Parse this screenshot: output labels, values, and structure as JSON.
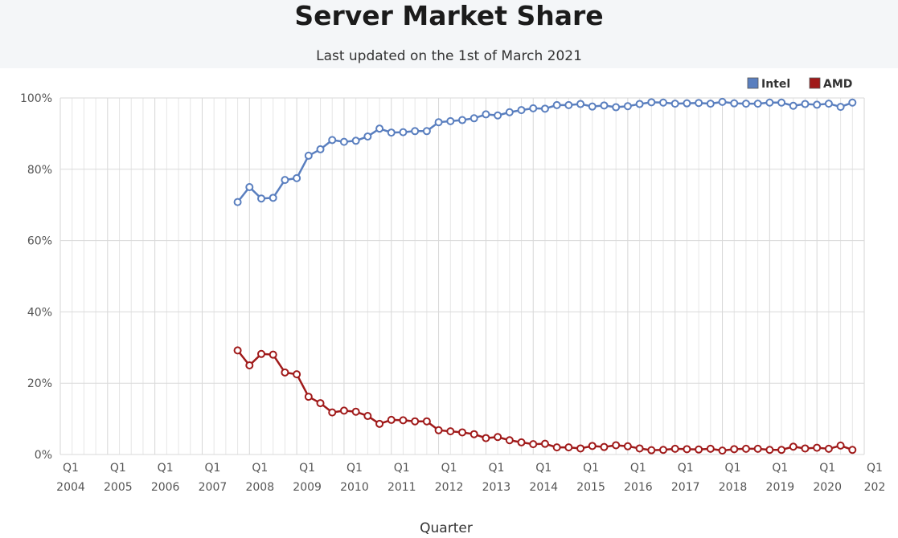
{
  "title": "Server Market Share",
  "subtitle": "Last updated on the 1st of March 2021",
  "chart_data": {
    "type": "line",
    "xlabel": "Quarter",
    "ylabel": "",
    "ylim": [
      0,
      100
    ],
    "yticks": [
      0,
      20,
      40,
      60,
      80,
      100
    ],
    "ytick_labels": [
      "0%",
      "20%",
      "40%",
      "60%",
      "80%",
      "100%"
    ],
    "x_range": [
      "2004 Q1",
      "2021 Q1"
    ],
    "x_tick_top": "Q1",
    "x_tick_years": [
      "2004",
      "2005",
      "2006",
      "2007",
      "2008",
      "2009",
      "2010",
      "2011",
      "2012",
      "2013",
      "2014",
      "2015",
      "2016",
      "2017",
      "2018",
      "2019",
      "2020",
      "202"
    ],
    "grid": true,
    "legend_position": "top-right",
    "quarters": [
      "2007 Q4",
      "2008 Q1",
      "2008 Q2",
      "2008 Q3",
      "2008 Q4",
      "2009 Q1",
      "2009 Q2",
      "2009 Q3",
      "2009 Q4",
      "2010 Q1",
      "2010 Q2",
      "2010 Q3",
      "2010 Q4",
      "2011 Q1",
      "2011 Q2",
      "2011 Q3",
      "2011 Q4",
      "2012 Q1",
      "2012 Q2",
      "2012 Q3",
      "2012 Q4",
      "2013 Q1",
      "2013 Q2",
      "2013 Q3",
      "2013 Q4",
      "2014 Q1",
      "2014 Q2",
      "2014 Q3",
      "2014 Q4",
      "2015 Q1",
      "2015 Q2",
      "2015 Q3",
      "2015 Q4",
      "2016 Q1",
      "2016 Q2",
      "2016 Q3",
      "2016 Q4",
      "2017 Q1",
      "2017 Q2",
      "2017 Q3",
      "2017 Q4",
      "2018 Q1",
      "2018 Q2",
      "2018 Q3",
      "2018 Q4",
      "2019 Q1",
      "2019 Q2",
      "2019 Q3",
      "2019 Q4",
      "2020 Q1",
      "2020 Q2",
      "2020 Q3",
      "2020 Q4"
    ],
    "series": [
      {
        "name": "Intel",
        "color": "#5a7fbf",
        "values": [
          70.8,
          75.0,
          71.8,
          72.0,
          77.0,
          77.5,
          83.8,
          85.6,
          88.2,
          87.7,
          88.0,
          89.2,
          91.4,
          90.3,
          90.4,
          90.7,
          90.7,
          93.2,
          93.5,
          93.8,
          94.3,
          95.4,
          95.1,
          96.0,
          96.6,
          97.1,
          97.0,
          98.0,
          98.0,
          98.3,
          97.6,
          97.9,
          97.4,
          97.7,
          98.3,
          98.8,
          98.7,
          98.4,
          98.5,
          98.6,
          98.4,
          98.9,
          98.5,
          98.4,
          98.4,
          98.7,
          98.7,
          97.8,
          98.3,
          98.1,
          98.4,
          97.5,
          98.7
        ]
      },
      {
        "name": "AMD",
        "color": "#a01a1a",
        "values": [
          29.2,
          25.0,
          28.2,
          28.0,
          23.0,
          22.5,
          16.2,
          14.4,
          11.8,
          12.3,
          12.0,
          10.8,
          8.6,
          9.7,
          9.6,
          9.3,
          9.3,
          6.8,
          6.5,
          6.2,
          5.7,
          4.6,
          4.9,
          4.0,
          3.4,
          2.9,
          3.0,
          2.0,
          2.0,
          1.7,
          2.4,
          2.1,
          2.6,
          2.3,
          1.7,
          1.2,
          1.3,
          1.6,
          1.5,
          1.4,
          1.6,
          1.1,
          1.5,
          1.6,
          1.6,
          1.3,
          1.3,
          2.2,
          1.7,
          1.9,
          1.6,
          2.5,
          1.3
        ]
      }
    ]
  }
}
